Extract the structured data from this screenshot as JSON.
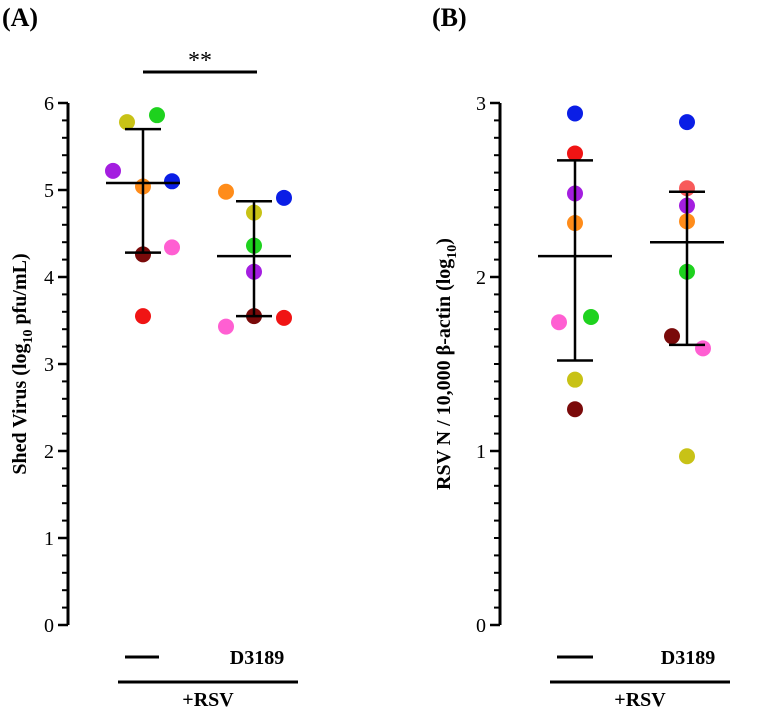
{
  "chart_data": [
    {
      "type": "scatter",
      "panel_label": "(A)",
      "ylabel_main": "Shed Virus (log",
      "ylabel_sub": "10",
      "ylabel_end": " pfu/mL)",
      "ylim": [
        0,
        6
      ],
      "yticks": [
        "0",
        "1",
        "2",
        "3",
        "4",
        "5",
        "6"
      ],
      "categories": [
        "—",
        "D3189"
      ],
      "group_label": "+RSV",
      "significance": "**",
      "series": [
        {
          "name": "—",
          "mean": 5.08,
          "sd_low": 4.28,
          "sd_high": 5.7,
          "points": [
            {
              "y": 5.78,
              "color": "#c8c216"
            },
            {
              "y": 5.86,
              "color": "#1ed21e"
            },
            {
              "y": 5.22,
              "color": "#a41ee0"
            },
            {
              "y": 5.04,
              "color": "#ff8c1a"
            },
            {
              "y": 5.1,
              "color": "#0a1ee6"
            },
            {
              "y": 4.26,
              "color": "#7a0a0a"
            },
            {
              "y": 4.34,
              "color": "#ff5fd2"
            },
            {
              "y": 3.55,
              "color": "#f01414"
            }
          ]
        },
        {
          "name": "D3189",
          "mean": 4.24,
          "sd_low": 3.55,
          "sd_high": 4.87,
          "points": [
            {
              "y": 4.98,
              "color": "#ff8c1a"
            },
            {
              "y": 4.74,
              "color": "#c8c216"
            },
            {
              "y": 4.91,
              "color": "#0a1ee6"
            },
            {
              "y": 4.36,
              "color": "#1ed21e"
            },
            {
              "y": 4.06,
              "color": "#a41ee0"
            },
            {
              "y": 3.55,
              "color": "#7a0a0a"
            },
            {
              "y": 3.43,
              "color": "#ff5fd2"
            },
            {
              "y": 3.53,
              "color": "#f01414"
            }
          ]
        }
      ]
    },
    {
      "type": "scatter",
      "panel_label": "(B)",
      "ylabel_main": "RSV N / 10,000 β-actin (log",
      "ylabel_sub": "10",
      "ylabel_end": ")",
      "ylim": [
        0,
        3
      ],
      "yticks": [
        "0",
        "1",
        "2",
        "3"
      ],
      "categories": [
        "—",
        "D3189"
      ],
      "group_label": "+RSV",
      "series": [
        {
          "name": "—",
          "mean": 2.12,
          "sd_low": 1.52,
          "sd_high": 2.67,
          "points": [
            {
              "y": 2.94,
              "color": "#0a1ee6"
            },
            {
              "y": 2.71,
              "color": "#f01414"
            },
            {
              "y": 2.48,
              "color": "#a41ee0"
            },
            {
              "y": 2.31,
              "color": "#ff8c1a"
            },
            {
              "y": 1.74,
              "color": "#ff5fd2"
            },
            {
              "y": 1.77,
              "color": "#1ed21e"
            },
            {
              "y": 1.41,
              "color": "#c8c216"
            },
            {
              "y": 1.24,
              "color": "#7a0a0a"
            }
          ]
        },
        {
          "name": "D3189",
          "mean": 2.2,
          "sd_low": 1.61,
          "sd_high": 2.49,
          "points": [
            {
              "y": 2.89,
              "color": "#0a1ee6"
            },
            {
              "y": 2.51,
              "color": "#f85a5a"
            },
            {
              "y": 2.41,
              "color": "#a41ee0"
            },
            {
              "y": 2.32,
              "color": "#ff8c1a"
            },
            {
              "y": 2.03,
              "color": "#1ed21e"
            },
            {
              "y": 1.66,
              "color": "#7a0a0a"
            },
            {
              "y": 1.59,
              "color": "#ff5fd2"
            },
            {
              "y": 0.97,
              "color": "#c8c216"
            }
          ]
        }
      ]
    }
  ]
}
